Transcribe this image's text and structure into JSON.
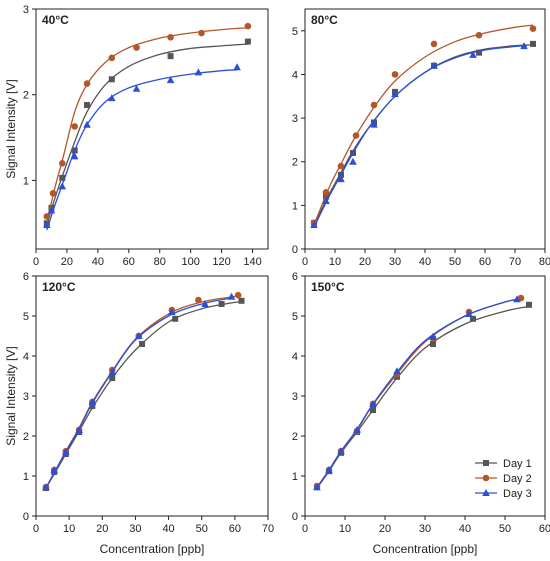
{
  "colors": {
    "day1": "#555555",
    "day2": "#b5562a",
    "day3": "#2c4fd6"
  },
  "shared": {
    "ylabel": "Signal Intensity [V]",
    "xlabel": "Concentration [ppb]",
    "legend": [
      "Day 1",
      "Day 2",
      "Day 3"
    ]
  },
  "chart_data": [
    {
      "type": "scatter",
      "title": "40°C",
      "xlabel": "",
      "ylabel": "Signal Intensity [V]",
      "xlim": [
        0,
        150
      ],
      "ylim": [
        0.2,
        3.0
      ],
      "xticks": [
        0,
        20,
        40,
        60,
        80,
        100,
        120,
        140
      ],
      "yticks": [
        1,
        2,
        3
      ],
      "series": [
        {
          "name": "Day 1",
          "marker": "square",
          "x": [
            7,
            10,
            17,
            25,
            33,
            49,
            87,
            137
          ],
          "y": [
            0.5,
            0.68,
            1.03,
            1.35,
            1.88,
            2.18,
            2.45,
            2.62
          ],
          "fit": [
            [
              7,
              0.48
            ],
            [
              12,
              0.78
            ],
            [
              18,
              1.1
            ],
            [
              25,
              1.45
            ],
            [
              33,
              1.8
            ],
            [
              45,
              2.12
            ],
            [
              60,
              2.33
            ],
            [
              80,
              2.47
            ],
            [
              100,
              2.54
            ],
            [
              120,
              2.57
            ],
            [
              137,
              2.59
            ]
          ]
        },
        {
          "name": "Day 2",
          "marker": "circle",
          "x": [
            7,
            11,
            17,
            25,
            33,
            49,
            65,
            87,
            107,
            137
          ],
          "y": [
            0.58,
            0.85,
            1.2,
            1.63,
            2.13,
            2.43,
            2.55,
            2.67,
            2.72,
            2.8
          ],
          "fit": [
            [
              7,
              0.5
            ],
            [
              12,
              0.9
            ],
            [
              18,
              1.3
            ],
            [
              25,
              1.8
            ],
            [
              33,
              2.12
            ],
            [
              45,
              2.38
            ],
            [
              60,
              2.55
            ],
            [
              80,
              2.66
            ],
            [
              100,
              2.72
            ],
            [
              120,
              2.76
            ],
            [
              137,
              2.78
            ]
          ]
        },
        {
          "name": "Day 3",
          "marker": "triangle",
          "x": [
            7,
            10,
            17,
            25,
            33,
            49,
            65,
            87,
            105,
            130
          ],
          "y": [
            0.48,
            0.65,
            0.93,
            1.28,
            1.65,
            1.96,
            2.07,
            2.17,
            2.26,
            2.32
          ],
          "fit": [
            [
              7,
              0.42
            ],
            [
              12,
              0.7
            ],
            [
              18,
              1.0
            ],
            [
              25,
              1.35
            ],
            [
              33,
              1.65
            ],
            [
              45,
              1.92
            ],
            [
              60,
              2.08
            ],
            [
              80,
              2.18
            ],
            [
              100,
              2.24
            ],
            [
              120,
              2.28
            ],
            [
              130,
              2.29
            ]
          ]
        }
      ]
    },
    {
      "type": "scatter",
      "title": "80°C",
      "xlabel": "",
      "ylabel": "",
      "xlim": [
        0,
        80
      ],
      "ylim": [
        0,
        5.5
      ],
      "xticks": [
        0,
        10,
        20,
        30,
        40,
        50,
        60,
        70,
        80
      ],
      "yticks": [
        0,
        1,
        2,
        3,
        4,
        5
      ],
      "series": [
        {
          "name": "Day 1",
          "marker": "square",
          "x": [
            3,
            7,
            12,
            16,
            23,
            30,
            43,
            58,
            76
          ],
          "y": [
            0.6,
            1.2,
            1.7,
            2.2,
            2.9,
            3.6,
            4.2,
            4.5,
            4.7
          ],
          "fit": [
            [
              3,
              0.55
            ],
            [
              8,
              1.25
            ],
            [
              12,
              1.75
            ],
            [
              16,
              2.25
            ],
            [
              22,
              2.85
            ],
            [
              30,
              3.5
            ],
            [
              40,
              4.05
            ],
            [
              50,
              4.4
            ],
            [
              60,
              4.58
            ],
            [
              70,
              4.66
            ],
            [
              76,
              4.68
            ]
          ]
        },
        {
          "name": "Day 2",
          "marker": "circle",
          "x": [
            3,
            7,
            12,
            17,
            23,
            30,
            43,
            58,
            76
          ],
          "y": [
            0.6,
            1.3,
            1.9,
            2.6,
            3.3,
            4.0,
            4.7,
            4.9,
            5.05
          ],
          "fit": [
            [
              3,
              0.55
            ],
            [
              8,
              1.4
            ],
            [
              12,
              1.95
            ],
            [
              17,
              2.6
            ],
            [
              23,
              3.25
            ],
            [
              30,
              3.85
            ],
            [
              40,
              4.4
            ],
            [
              50,
              4.75
            ],
            [
              60,
              4.95
            ],
            [
              70,
              5.08
            ],
            [
              76,
              5.13
            ]
          ]
        },
        {
          "name": "Day 3",
          "marker": "triangle",
          "x": [
            3,
            7,
            12,
            16,
            23,
            30,
            43,
            56,
            73
          ],
          "y": [
            0.55,
            1.1,
            1.6,
            2.0,
            2.85,
            3.55,
            4.2,
            4.45,
            4.65
          ],
          "fit": [
            [
              3,
              0.5
            ],
            [
              8,
              1.2
            ],
            [
              12,
              1.7
            ],
            [
              16,
              2.2
            ],
            [
              22,
              2.85
            ],
            [
              30,
              3.5
            ],
            [
              40,
              4.05
            ],
            [
              50,
              4.38
            ],
            [
              60,
              4.56
            ],
            [
              70,
              4.64
            ],
            [
              74,
              4.66
            ]
          ]
        }
      ]
    },
    {
      "type": "scatter",
      "title": "120°C",
      "xlabel": "Concentration [ppb]",
      "ylabel": "Signal Intensity [V]",
      "xlim": [
        0,
        70
      ],
      "ylim": [
        0,
        6
      ],
      "xticks": [
        0,
        10,
        20,
        30,
        40,
        50,
        60,
        70
      ],
      "yticks": [
        0,
        1,
        2,
        3,
        4,
        5,
        6
      ],
      "series": [
        {
          "name": "Day 1",
          "marker": "square",
          "x": [
            3,
            5.5,
            9,
            13,
            17,
            23,
            32,
            42,
            56,
            62
          ],
          "y": [
            0.7,
            1.1,
            1.55,
            2.1,
            2.75,
            3.45,
            4.3,
            4.93,
            5.3,
            5.38
          ],
          "fit": [
            [
              3,
              0.7
            ],
            [
              6,
              1.12
            ],
            [
              9,
              1.55
            ],
            [
              13,
              2.12
            ],
            [
              17,
              2.7
            ],
            [
              23,
              3.45
            ],
            [
              30,
              4.15
            ],
            [
              40,
              4.85
            ],
            [
              50,
              5.18
            ],
            [
              60,
              5.34
            ],
            [
              62,
              5.36
            ]
          ]
        },
        {
          "name": "Day 2",
          "marker": "circle",
          "x": [
            3,
            5.5,
            9,
            13,
            17,
            23,
            31,
            41,
            49,
            61
          ],
          "y": [
            0.72,
            1.15,
            1.62,
            2.15,
            2.85,
            3.65,
            4.5,
            5.15,
            5.4,
            5.52
          ],
          "fit": [
            [
              3,
              0.7
            ],
            [
              6,
              1.16
            ],
            [
              9,
              1.62
            ],
            [
              13,
              2.2
            ],
            [
              17,
              2.85
            ],
            [
              23,
              3.62
            ],
            [
              30,
              4.42
            ],
            [
              40,
              5.05
            ],
            [
              50,
              5.35
            ],
            [
              61,
              5.5
            ]
          ]
        },
        {
          "name": "Day 3",
          "marker": "triangle",
          "x": [
            3,
            5.5,
            9,
            13,
            17,
            23,
            31,
            41,
            51,
            59
          ],
          "y": [
            0.72,
            1.15,
            1.6,
            2.15,
            2.85,
            3.6,
            4.5,
            5.1,
            5.3,
            5.48
          ],
          "fit": [
            [
              3,
              0.7
            ],
            [
              6,
              1.16
            ],
            [
              9,
              1.6
            ],
            [
              13,
              2.18
            ],
            [
              17,
              2.82
            ],
            [
              23,
              3.6
            ],
            [
              30,
              4.4
            ],
            [
              40,
              5.0
            ],
            [
              50,
              5.3
            ],
            [
              59,
              5.45
            ]
          ]
        }
      ]
    },
    {
      "type": "scatter",
      "title": "150°C",
      "xlabel": "Concentration [ppb]",
      "ylabel": "",
      "xlim": [
        0,
        60
      ],
      "ylim": [
        0,
        6
      ],
      "xticks": [
        0,
        10,
        20,
        30,
        40,
        50,
        60
      ],
      "yticks": [
        0,
        1,
        2,
        3,
        4,
        5,
        6
      ],
      "series": [
        {
          "name": "Day 1",
          "marker": "square",
          "x": [
            3,
            6,
            9,
            13,
            17,
            23,
            32,
            42,
            56
          ],
          "y": [
            0.72,
            1.12,
            1.58,
            2.1,
            2.65,
            3.48,
            4.3,
            4.93,
            5.28
          ],
          "fit": [
            [
              3,
              0.7
            ],
            [
              6,
              1.12
            ],
            [
              9,
              1.58
            ],
            [
              13,
              2.1
            ],
            [
              17,
              2.65
            ],
            [
              23,
              3.45
            ],
            [
              30,
              4.2
            ],
            [
              40,
              4.8
            ],
            [
              50,
              5.12
            ],
            [
              56,
              5.24
            ]
          ]
        },
        {
          "name": "Day 2",
          "marker": "circle",
          "x": [
            3,
            6,
            9,
            13,
            17,
            23,
            32,
            41,
            54
          ],
          "y": [
            0.75,
            1.15,
            1.62,
            2.12,
            2.8,
            3.55,
            4.45,
            5.1,
            5.45
          ],
          "fit": [
            [
              3,
              0.72
            ],
            [
              6,
              1.15
            ],
            [
              9,
              1.62
            ],
            [
              13,
              2.15
            ],
            [
              17,
              2.78
            ],
            [
              23,
              3.55
            ],
            [
              30,
              4.35
            ],
            [
              40,
              5.0
            ],
            [
              50,
              5.35
            ],
            [
              54,
              5.43
            ]
          ]
        },
        {
          "name": "Day 3",
          "marker": "triangle",
          "x": [
            3,
            6,
            9,
            13,
            17,
            23,
            32,
            41,
            53
          ],
          "y": [
            0.72,
            1.15,
            1.62,
            2.15,
            2.8,
            3.62,
            4.48,
            5.05,
            5.42
          ],
          "fit": [
            [
              3,
              0.7
            ],
            [
              6,
              1.15
            ],
            [
              9,
              1.62
            ],
            [
              13,
              2.17
            ],
            [
              17,
              2.8
            ],
            [
              23,
              3.6
            ],
            [
              30,
              4.38
            ],
            [
              40,
              5.0
            ],
            [
              50,
              5.35
            ],
            [
              53,
              5.4
            ]
          ]
        }
      ]
    }
  ]
}
